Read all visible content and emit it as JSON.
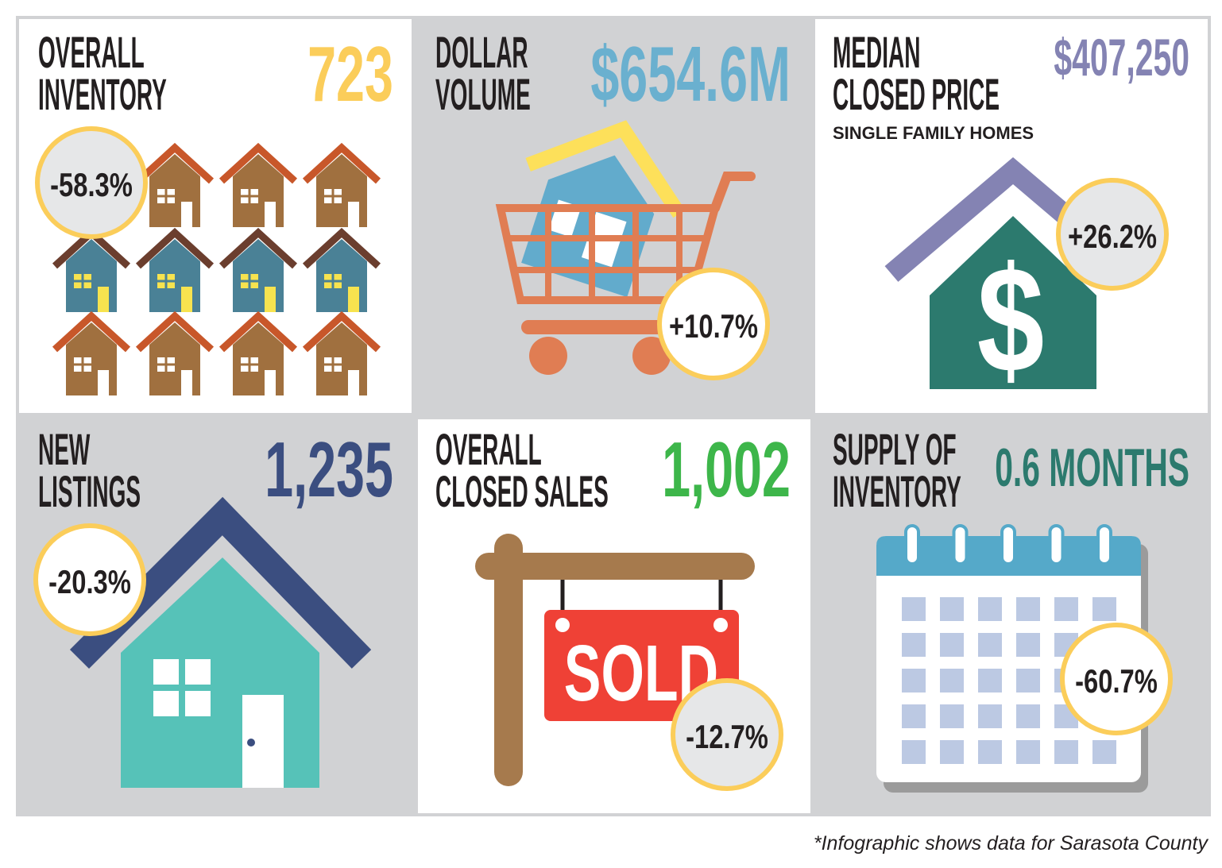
{
  "panels": [
    {
      "title": [
        "OVERALL",
        "INVENTORY"
      ],
      "value": "723",
      "change": "-58.3%"
    },
    {
      "title": [
        "DOLLAR",
        "VOLUME"
      ],
      "value": "$654.6M",
      "change": "+10.7%"
    },
    {
      "title": [
        "MEDIAN",
        "CLOSED PRICE"
      ],
      "value": "$407,250",
      "subtitle": "SINGLE FAMILY HOMES",
      "icon_text": "$",
      "change": "+26.2%"
    },
    {
      "title": [
        "NEW",
        "LISTINGS"
      ],
      "value": "1,235",
      "change": "-20.3%"
    },
    {
      "title": [
        "OVERALL",
        "CLOSED SALES"
      ],
      "value": "1,002",
      "icon_text": "SOLD",
      "change": "-12.7%"
    },
    {
      "title": [
        "SUPPLY OF",
        "INVENTORY"
      ],
      "value": "0.6 MONTHS",
      "change": "-60.7%"
    }
  ],
  "footnote": "*Infographic shows data for Sarasota County"
}
